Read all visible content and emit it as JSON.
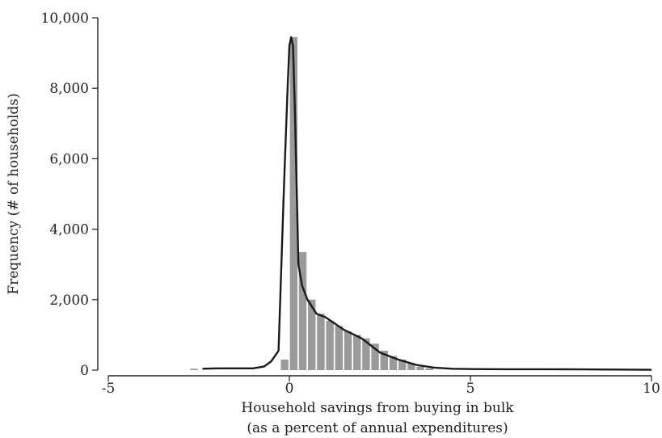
{
  "chart_data": {
    "type": "bar",
    "xlabel": "Household savings from buying in bulk",
    "xlabel_line2": "(as a percent of annual expenditures)",
    "ylabel": "Frequency (# of households)",
    "xlim": [
      -5,
      10
    ],
    "ylim": [
      0,
      10000
    ],
    "x_ticks": [
      -5,
      0,
      5,
      10
    ],
    "x_tick_labels": [
      "-5",
      "0",
      "5",
      "10"
    ],
    "y_ticks": [
      0,
      2000,
      4000,
      6000,
      8000,
      10000
    ],
    "y_tick_labels": [
      "0",
      "2,000",
      "4,000",
      "6,000",
      "8,000",
      "10,000"
    ],
    "bin_width": 0.25,
    "bars": [
      {
        "x": -2.75,
        "value": 40
      },
      {
        "x": -0.25,
        "value": 300
      },
      {
        "x": 0.0,
        "value": 9450
      },
      {
        "x": 0.25,
        "value": 3350
      },
      {
        "x": 0.5,
        "value": 2000
      },
      {
        "x": 0.75,
        "value": 1600
      },
      {
        "x": 1.0,
        "value": 1400
      },
      {
        "x": 1.25,
        "value": 1250
      },
      {
        "x": 1.5,
        "value": 1100
      },
      {
        "x": 1.75,
        "value": 1000
      },
      {
        "x": 2.0,
        "value": 900
      },
      {
        "x": 2.25,
        "value": 750
      },
      {
        "x": 2.5,
        "value": 550
      },
      {
        "x": 2.75,
        "value": 400
      },
      {
        "x": 3.0,
        "value": 300
      },
      {
        "x": 3.25,
        "value": 200
      },
      {
        "x": 3.5,
        "value": 100
      },
      {
        "x": 3.75,
        "value": 50
      },
      {
        "x": 7.0,
        "value": 50
      },
      {
        "x": 7.25,
        "value": 50
      },
      {
        "x": 7.5,
        "value": 50
      },
      {
        "x": 8.75,
        "value": 40
      }
    ],
    "density": {
      "x": [
        -2.4,
        -2.0,
        -1.5,
        -1.0,
        -0.7,
        -0.5,
        -0.3,
        -0.15,
        -0.05,
        0.0,
        0.05,
        0.1,
        0.15,
        0.25,
        0.35,
        0.5,
        0.75,
        1.0,
        1.5,
        2.0,
        2.5,
        3.0,
        3.5,
        4.0,
        4.5,
        5.0,
        6.0,
        7.0,
        8.0,
        9.0,
        10.0
      ],
      "y": [
        40,
        50,
        50,
        50,
        100,
        250,
        550,
        5200,
        8000,
        9200,
        9450,
        9200,
        7500,
        3000,
        2400,
        2000,
        1600,
        1500,
        1150,
        900,
        500,
        300,
        150,
        70,
        40,
        30,
        25,
        25,
        20,
        15,
        10
      ]
    }
  }
}
